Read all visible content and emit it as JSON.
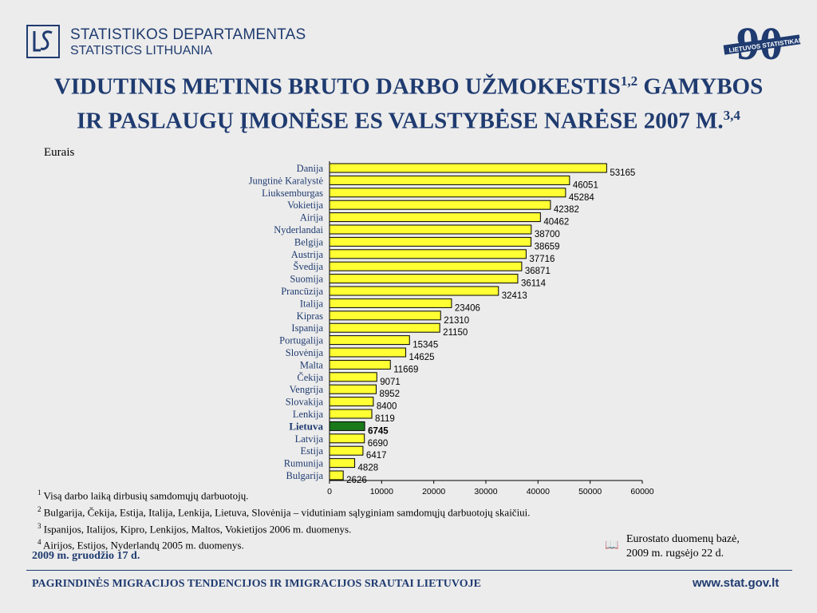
{
  "header": {
    "org_name": "STATISTIKOS DEPARTAMENTAS",
    "org_name_en": "STATISTICS LITHUANIA",
    "anniversary_number": "90",
    "anniversary_text": "LIETUVOS STATISTIKAI"
  },
  "title": {
    "line1": "VIDUTINIS METINIS BRUTO DARBO UŽMOKESTIS",
    "line1_sup": "1,2",
    "line1_end": " GAMYBOS",
    "line2": "IR PASLAUGŲ ĮMONĖSE ES VALSTYBĖSE NARĖSE 2007 M.",
    "line2_sup": "3,4"
  },
  "chart_data": {
    "type": "bar",
    "orientation": "horizontal",
    "unit_label": "Eurais",
    "categories": [
      "Danija",
      "Jungtinė Karalystė",
      "Liuksemburgas",
      "Vokietija",
      "Airija",
      "Nyderlandai",
      "Belgija",
      "Austrija",
      "Švedija",
      "Suomija",
      "Prancūzija",
      "Italija",
      "Kipras",
      "Ispanija",
      "Portugalija",
      "Slovėnija",
      "Malta",
      "Čekija",
      "Vengrija",
      "Slovakija",
      "Lenkija",
      "Lietuva",
      "Latvija",
      "Estija",
      "Rumunija",
      "Bulgarija"
    ],
    "values": [
      53165,
      46051,
      45284,
      42382,
      40462,
      38700,
      38659,
      37716,
      36871,
      36114,
      32413,
      23406,
      21310,
      21150,
      15345,
      14625,
      11669,
      9071,
      8952,
      8400,
      8119,
      6745,
      6690,
      6417,
      4828,
      2626
    ],
    "value_labels": [
      "53165",
      "46051",
      "45284",
      "42382",
      "40462",
      "38700",
      "38659",
      "37716",
      "36871",
      "36114",
      "32413",
      "23406",
      "21310",
      "21150",
      "15345",
      "14625",
      "11669",
      "9071",
      "8952",
      "8400",
      "8119",
      "6745",
      "6690",
      "6417",
      "4828",
      "2626"
    ],
    "highlight": "Lietuva",
    "bar_color": "#ffff33",
    "highlight_color": "#1a7a1a",
    "xlim": [
      0,
      60000
    ],
    "xticks": [
      0,
      10000,
      20000,
      30000,
      40000,
      50000,
      60000
    ],
    "xtick_labels": [
      "0",
      "10000",
      "20000",
      "30000",
      "40000",
      "50000",
      "60000"
    ]
  },
  "notes": [
    {
      "sup": "1",
      "text": " Visą darbo laiką dirbusių samdomųjų darbuotojų."
    },
    {
      "sup": "2",
      "text": " Bulgarija, Čekija, Estija, Italija, Lenkija, Lietuva, Slovėnija – vidutiniam sąlyginiam samdomųjų darbuotojų skaičiui."
    },
    {
      "sup": "3",
      "text": " Ispanijos, Italijos, Kipro, Lenkijos, Maltos, Vokietijos 2006 m. duomenys."
    },
    {
      "sup": "4",
      "text": " Airijos, Estijos, Nyderlandų 2005 m. duomenys."
    }
  ],
  "date": "2009 m. gruodžio 17 d.",
  "source": {
    "icon": "book-icon",
    "line1": "Eurostato duomenų bazė,",
    "line2": "2009 m. rugsėjo 22 d."
  },
  "footer": {
    "text": "PAGRINDINĖS MIGRACIJOS TENDENCIJOS  IR IMIGRACIJOS SRAUTAI  LIETUVOJE",
    "url": "www.stat.gov.lt"
  }
}
